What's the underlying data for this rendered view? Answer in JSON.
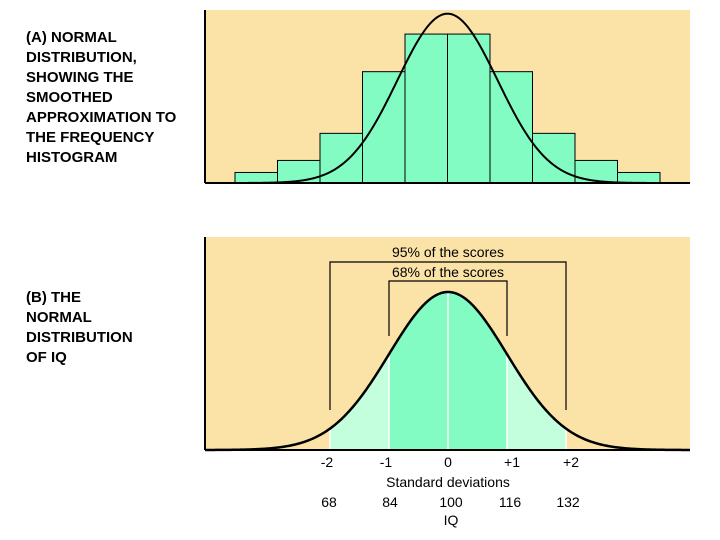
{
  "panel_a": {
    "caption_lines": [
      "(A) NORMAL",
      "DISTRIBUTION,",
      "SHOWING THE",
      "SMOOTHED",
      "APPROXIMATION TO",
      "THE FREQUENCY",
      "HISTOGRAM"
    ]
  },
  "panel_b": {
    "caption_lines": [
      "(B) THE",
      "NORMAL",
      "DISTRIBUTION",
      "OF IQ"
    ]
  },
  "colors": {
    "panel_background": "#fbe3a8",
    "bar_fill": "#82fcc3",
    "inner_band_fill": "#82fcc3",
    "outer_band_fill": "#c4ffdd",
    "curve": "#000000"
  },
  "chart_data": [
    {
      "type": "bar",
      "title": "(A) NORMAL DISTRIBUTION, SHOWING THE SMOOTHED APPROXIMATION TO THE FREQUENCY HISTOGRAM",
      "overlay": "normal-curve",
      "grid": false,
      "bin_edges": [
        -5,
        -4,
        -3,
        -2,
        -1,
        0,
        1,
        2,
        3,
        4,
        5
      ],
      "values": [
        0.07,
        0.15,
        0.33,
        0.74,
        0.99,
        0.99,
        0.74,
        0.33,
        0.15,
        0.07
      ],
      "ylim": [
        0,
        1.15
      ]
    },
    {
      "type": "area",
      "title": "(B) THE NORMAL DISTRIBUTION OF IQ",
      "curve": "normal",
      "grid": false,
      "mean": 100,
      "sd": 16,
      "xlim": [
        -3.4,
        4.1
      ],
      "x_ticks": [
        "-2",
        "-1",
        "0",
        "+1",
        "+2"
      ],
      "xlabel": "Standard deviations",
      "iq_ticks": [
        "68",
        "84",
        "100",
        "116",
        "132"
      ],
      "iq_label": "IQ",
      "annotations": [
        {
          "label": "95% of the scores",
          "from": -2,
          "to": 2
        },
        {
          "label": "68% of the scores",
          "from": -1,
          "to": 1
        }
      ]
    }
  ]
}
